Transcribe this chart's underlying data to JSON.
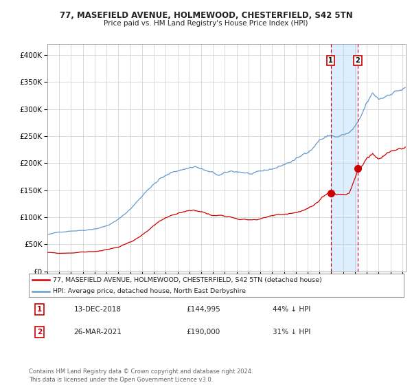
{
  "title_line1": "77, MASEFIELD AVENUE, HOLMEWOOD, CHESTERFIELD, S42 5TN",
  "title_line2": "Price paid vs. HM Land Registry's House Price Index (HPI)",
  "legend_red": "77, MASEFIELD AVENUE, HOLMEWOOD, CHESTERFIELD, S42 5TN (detached house)",
  "legend_blue": "HPI: Average price, detached house, North East Derbyshire",
  "annotation1_date": "13-DEC-2018",
  "annotation1_price": "£144,995",
  "annotation1_hpi": "44% ↓ HPI",
  "annotation2_date": "26-MAR-2021",
  "annotation2_price": "£190,000",
  "annotation2_hpi": "31% ↓ HPI",
  "footer": "Contains HM Land Registry data © Crown copyright and database right 2024.\nThis data is licensed under the Open Government Licence v3.0.",
  "red_color": "#cc0000",
  "blue_color": "#6699cc",
  "shade_color": "#ddeeff",
  "background_color": "#ffffff",
  "grid_color": "#cccccc",
  "sale1_date_num": 2018.95,
  "sale1_value": 144995,
  "sale2_date_num": 2021.23,
  "sale2_value": 190000,
  "xmin": 1995.0,
  "xmax": 2025.3,
  "ymin": 0,
  "ymax": 420000
}
